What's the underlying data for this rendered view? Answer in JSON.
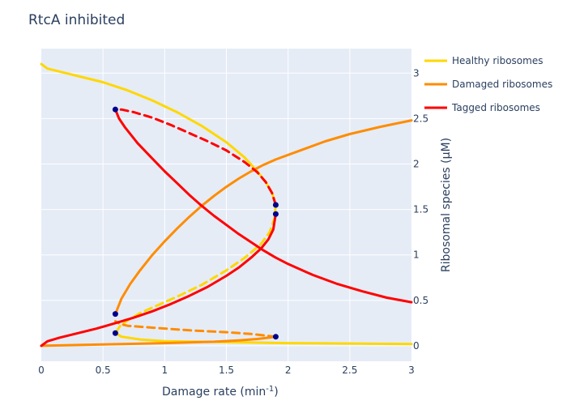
{
  "chart_data": {
    "type": "line",
    "title": "RtcA inhibited",
    "xlabel": "Damage rate (min",
    "xlabel_sup": "-1",
    "xlabel_end": ")",
    "ylabel": "Ribosomal species (μM)",
    "xlim": [
      0,
      3
    ],
    "ylim": [
      -0.17,
      3.27
    ],
    "x_ticks": [
      0,
      0.5,
      1,
      1.5,
      2,
      2.5,
      3
    ],
    "x_tick_labels": [
      "0",
      "0.5",
      "1",
      "1.5",
      "2",
      "2.5",
      "3"
    ],
    "y_ticks": [
      0,
      0.5,
      1,
      1.5,
      2,
      2.5,
      3
    ],
    "y_tick_labels": [
      "0",
      "0.5",
      "1",
      "1.5",
      "2",
      "2.5",
      "3"
    ],
    "y_axis_side": "right",
    "grid": true,
    "legend_position": "top-right outside",
    "background_color": "#e5ecf6",
    "series": [
      {
        "name": "Healthy ribosomes",
        "color": "#ffd700",
        "segments": [
          {
            "style": "solid",
            "points": [
              [
                0,
                3.1
              ],
              [
                0.05,
                3.05
              ],
              [
                0.2,
                3.0
              ],
              [
                0.5,
                2.9
              ],
              [
                0.7,
                2.81
              ],
              [
                0.9,
                2.7
              ],
              [
                1.1,
                2.57
              ],
              [
                1.3,
                2.42
              ],
              [
                1.5,
                2.24
              ],
              [
                1.65,
                2.07
              ],
              [
                1.75,
                1.92
              ],
              [
                1.82,
                1.8
              ],
              [
                1.87,
                1.68
              ],
              [
                1.9,
                1.55
              ]
            ]
          },
          {
            "style": "dashed",
            "points": [
              [
                1.9,
                1.55
              ],
              [
                1.89,
                1.4
              ],
              [
                1.85,
                1.25
              ],
              [
                1.78,
                1.12
              ],
              [
                1.65,
                0.97
              ],
              [
                1.5,
                0.83
              ],
              [
                1.3,
                0.67
              ],
              [
                1.1,
                0.54
              ],
              [
                0.95,
                0.45
              ],
              [
                0.8,
                0.36
              ],
              [
                0.7,
                0.28
              ],
              [
                0.64,
                0.22
              ],
              [
                0.6,
                0.14
              ]
            ]
          },
          {
            "style": "solid",
            "points": [
              [
                0.6,
                0.14
              ],
              [
                0.65,
                0.1
              ],
              [
                0.8,
                0.07
              ],
              [
                1.0,
                0.05
              ],
              [
                1.5,
                0.04
              ],
              [
                2.0,
                0.03
              ],
              [
                2.5,
                0.025
              ],
              [
                3.0,
                0.02
              ]
            ]
          }
        ]
      },
      {
        "name": "Damaged ribosomes",
        "color": "#ff8c00",
        "segments": [
          {
            "style": "solid",
            "points": [
              [
                0,
                0
              ],
              [
                0.5,
                0.015
              ],
              [
                1.0,
                0.03
              ],
              [
                1.4,
                0.045
              ],
              [
                1.6,
                0.06
              ],
              [
                1.75,
                0.075
              ],
              [
                1.85,
                0.09
              ],
              [
                1.9,
                0.1
              ]
            ]
          },
          {
            "style": "dashed",
            "points": [
              [
                1.9,
                0.1
              ],
              [
                1.7,
                0.13
              ],
              [
                1.5,
                0.15
              ],
              [
                1.2,
                0.17
              ],
              [
                1.0,
                0.19
              ],
              [
                0.8,
                0.21
              ],
              [
                0.7,
                0.22
              ],
              [
                0.64,
                0.24
              ],
              [
                0.6,
                0.27
              ]
            ]
          },
          {
            "style": "solid",
            "points": [
              [
                0.6,
                0.35
              ],
              [
                0.65,
                0.52
              ],
              [
                0.72,
                0.68
              ],
              [
                0.8,
                0.83
              ],
              [
                0.9,
                1.0
              ],
              [
                1.0,
                1.15
              ],
              [
                1.1,
                1.29
              ],
              [
                1.2,
                1.42
              ],
              [
                1.3,
                1.54
              ],
              [
                1.4,
                1.65
              ],
              [
                1.5,
                1.75
              ],
              [
                1.6,
                1.84
              ],
              [
                1.7,
                1.92
              ],
              [
                1.8,
                1.99
              ],
              [
                1.9,
                2.05
              ],
              [
                2.1,
                2.15
              ],
              [
                2.3,
                2.25
              ],
              [
                2.5,
                2.33
              ],
              [
                2.75,
                2.41
              ],
              [
                3.0,
                2.48
              ]
            ]
          }
        ]
      },
      {
        "name": "Tagged ribosomes",
        "color": "#ff0000",
        "segments": [
          {
            "style": "solid",
            "points": [
              [
                0,
                0
              ],
              [
                0.05,
                0.05
              ],
              [
                0.15,
                0.09
              ],
              [
                0.3,
                0.14
              ],
              [
                0.45,
                0.19
              ],
              [
                0.6,
                0.25
              ],
              [
                0.75,
                0.31
              ],
              [
                0.9,
                0.38
              ],
              [
                1.05,
                0.46
              ],
              [
                1.2,
                0.55
              ],
              [
                1.35,
                0.65
              ],
              [
                1.5,
                0.77
              ],
              [
                1.6,
                0.86
              ],
              [
                1.7,
                0.97
              ],
              [
                1.78,
                1.07
              ],
              [
                1.84,
                1.17
              ],
              [
                1.88,
                1.28
              ],
              [
                1.9,
                1.45
              ]
            ]
          },
          {
            "style": "dashed",
            "points": [
              [
                1.9,
                1.55
              ],
              [
                1.87,
                1.68
              ],
              [
                1.82,
                1.8
              ],
              [
                1.75,
                1.91
              ],
              [
                1.65,
                2.02
              ],
              [
                1.5,
                2.15
              ],
              [
                1.35,
                2.25
              ],
              [
                1.2,
                2.34
              ],
              [
                1.05,
                2.43
              ],
              [
                0.9,
                2.51
              ],
              [
                0.75,
                2.57
              ],
              [
                0.65,
                2.6
              ],
              [
                0.6,
                2.6
              ]
            ]
          },
          {
            "style": "solid",
            "points": [
              [
                0.6,
                2.6
              ],
              [
                0.63,
                2.5
              ],
              [
                0.68,
                2.4
              ],
              [
                0.78,
                2.23
              ],
              [
                0.9,
                2.06
              ],
              [
                1.0,
                1.92
              ],
              [
                1.1,
                1.79
              ],
              [
                1.2,
                1.66
              ],
              [
                1.3,
                1.54
              ],
              [
                1.4,
                1.43
              ],
              [
                1.5,
                1.33
              ],
              [
                1.6,
                1.23
              ],
              [
                1.7,
                1.14
              ],
              [
                1.8,
                1.05
              ],
              [
                1.9,
                0.97
              ],
              [
                2.0,
                0.9
              ],
              [
                2.2,
                0.78
              ],
              [
                2.4,
                0.68
              ],
              [
                2.6,
                0.6
              ],
              [
                2.8,
                0.53
              ],
              [
                3.0,
                0.48
              ]
            ]
          }
        ]
      }
    ],
    "marker_color": "#00008b",
    "markers": [
      [
        0.6,
        2.6
      ],
      [
        1.9,
        1.55
      ],
      [
        1.9,
        1.45
      ],
      [
        0.6,
        0.35
      ],
      [
        0.6,
        0.14
      ],
      [
        1.9,
        0.1
      ]
    ]
  }
}
